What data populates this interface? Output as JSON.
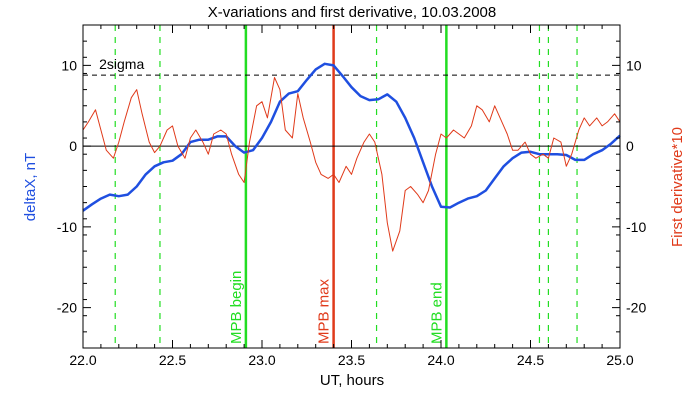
{
  "chart_data": {
    "type": "line",
    "title": "X-variations and first derivative, 10.03.2008",
    "xlabel": "UT, hours",
    "ylabel_left": "deltaX, nT",
    "ylabel_right": "First derivative*10",
    "xlim": [
      22.0,
      25.0
    ],
    "ylim": [
      -25,
      15
    ],
    "xticks": [
      "22.0",
      "22.5",
      "23.0",
      "23.5",
      "24.0",
      "24.5",
      "25.0"
    ],
    "xtick_values": [
      22.0,
      22.5,
      23.0,
      23.5,
      24.0,
      24.5,
      25.0
    ],
    "yticks": [
      "10",
      "0",
      "-10",
      "-20"
    ],
    "ytick_values": [
      10,
      0,
      -10,
      -20
    ],
    "colors": {
      "deltaX": "#1f4fe0",
      "derivative": "#e03a1a",
      "mpb_lines": "#22dd22",
      "max_line": "#e03a1a",
      "ylabel_left": "#1f4fe0",
      "ylabel_right": "#e03a1a"
    },
    "sigma": {
      "label": "2sigma",
      "value": 8.8
    },
    "zero_line": 0,
    "vertical_markers": [
      {
        "x": 22.91,
        "label": "MPB begin",
        "kind": "solid",
        "color": "#22dd22"
      },
      {
        "x": 23.4,
        "label": "MPB max",
        "kind": "solid",
        "color": "#e03a1a"
      },
      {
        "x": 24.03,
        "label": "MPB end",
        "kind": "solid",
        "color": "#22dd22"
      },
      {
        "x": 22.18,
        "kind": "dashed",
        "color": "#22dd22"
      },
      {
        "x": 22.43,
        "kind": "dashed",
        "color": "#22dd22"
      },
      {
        "x": 23.64,
        "kind": "dashed",
        "color": "#22dd22"
      },
      {
        "x": 24.55,
        "kind": "dashed",
        "color": "#22dd22"
      },
      {
        "x": 24.6,
        "kind": "dashed",
        "color": "#22dd22"
      },
      {
        "x": 24.76,
        "kind": "dashed",
        "color": "#22dd22"
      }
    ],
    "series": [
      {
        "name": "deltaX",
        "axis": "left",
        "x": [
          22.0,
          22.05,
          22.1,
          22.15,
          22.2,
          22.25,
          22.3,
          22.35,
          22.4,
          22.45,
          22.5,
          22.55,
          22.6,
          22.65,
          22.7,
          22.75,
          22.8,
          22.85,
          22.9,
          22.95,
          23.0,
          23.05,
          23.1,
          23.15,
          23.2,
          23.25,
          23.3,
          23.35,
          23.4,
          23.45,
          23.5,
          23.55,
          23.6,
          23.65,
          23.7,
          23.75,
          23.8,
          23.85,
          23.9,
          23.95,
          24.0,
          24.05,
          24.1,
          24.15,
          24.2,
          24.25,
          24.3,
          24.35,
          24.4,
          24.45,
          24.5,
          24.55,
          24.6,
          24.65,
          24.7,
          24.75,
          24.8,
          24.85,
          24.9,
          24.95,
          25.0
        ],
        "values": [
          -8.0,
          -7.2,
          -6.5,
          -6.0,
          -6.2,
          -6.0,
          -5.0,
          -3.5,
          -2.5,
          -2.0,
          -1.8,
          -1.0,
          0.5,
          0.8,
          0.8,
          1.2,
          1.2,
          0.0,
          -0.8,
          -0.5,
          1.0,
          3.0,
          5.5,
          6.5,
          6.8,
          8.2,
          9.5,
          10.2,
          10.0,
          8.7,
          7.3,
          6.2,
          5.7,
          5.8,
          6.4,
          5.5,
          3.5,
          1.0,
          -2.0,
          -5.0,
          -7.5,
          -7.6,
          -7.0,
          -6.5,
          -6.2,
          -5.5,
          -4.0,
          -2.5,
          -1.5,
          -0.8,
          -0.7,
          -1.0,
          -1.0,
          -1.0,
          -1.1,
          -1.7,
          -1.7,
          -1.0,
          -0.5,
          0.3,
          1.3
        ]
      },
      {
        "name": "derivative",
        "axis": "right",
        "x": [
          22.0,
          22.03,
          22.07,
          22.1,
          22.13,
          22.17,
          22.2,
          22.23,
          22.27,
          22.3,
          22.33,
          22.37,
          22.4,
          22.43,
          22.47,
          22.5,
          22.53,
          22.57,
          22.6,
          22.63,
          22.67,
          22.7,
          22.73,
          22.77,
          22.8,
          22.83,
          22.87,
          22.9,
          22.93,
          22.97,
          23.0,
          23.03,
          23.07,
          23.1,
          23.13,
          23.17,
          23.2,
          23.23,
          23.27,
          23.3,
          23.33,
          23.37,
          23.4,
          23.43,
          23.47,
          23.5,
          23.53,
          23.57,
          23.6,
          23.63,
          23.67,
          23.7,
          23.73,
          23.77,
          23.8,
          23.83,
          23.87,
          23.9,
          23.93,
          23.97,
          24.0,
          24.03,
          24.07,
          24.1,
          24.13,
          24.17,
          24.2,
          24.23,
          24.27,
          24.3,
          24.33,
          24.37,
          24.4,
          24.43,
          24.47,
          24.5,
          24.53,
          24.57,
          24.6,
          24.63,
          24.67,
          24.7,
          24.73,
          24.77,
          24.8,
          24.83,
          24.87,
          24.9,
          24.93,
          24.97,
          25.0
        ],
        "values": [
          2.0,
          3.0,
          4.5,
          2.0,
          -0.5,
          -1.5,
          0.5,
          3.0,
          6.0,
          7.0,
          4.0,
          0.5,
          -0.8,
          0.0,
          2.0,
          2.5,
          0.0,
          -1.5,
          1.0,
          2.0,
          0.5,
          -1.0,
          1.5,
          2.0,
          1.5,
          -1.0,
          -3.5,
          -4.5,
          0.5,
          5.0,
          5.5,
          3.5,
          8.5,
          7.0,
          2.0,
          1.0,
          6.5,
          3.5,
          0.5,
          -2.0,
          -3.5,
          -4.0,
          -3.5,
          -4.5,
          -2.5,
          -3.5,
          -1.5,
          0.5,
          1.5,
          0.5,
          -3.5,
          -9.5,
          -13.0,
          -10.5,
          -5.5,
          -5.0,
          -6.0,
          -7.0,
          -5.5,
          -1.0,
          1.5,
          1.0,
          2.0,
          1.5,
          1.0,
          2.5,
          5.0,
          4.5,
          3.0,
          5.0,
          3.5,
          1.5,
          -0.5,
          -0.5,
          0.5,
          -1.0,
          -1.5,
          -1.0,
          -1.5,
          1.0,
          0.5,
          -2.5,
          -1.0,
          2.0,
          3.5,
          2.5,
          3.5,
          2.5,
          3.0,
          4.0,
          3.0
        ]
      }
    ]
  }
}
